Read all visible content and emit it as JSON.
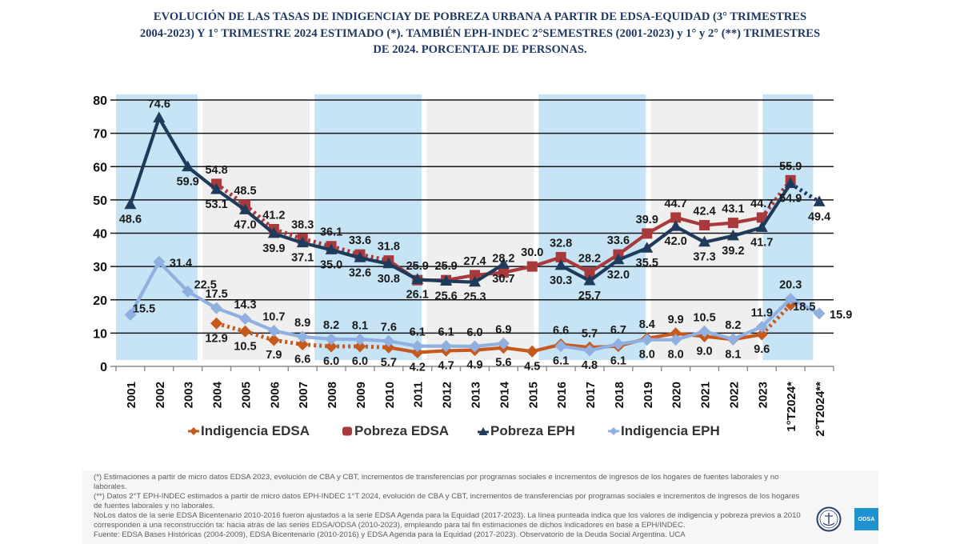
{
  "title_lines": [
    "EVOLUCIÓN DE LAS TASAS DE INDIGENCIAY DE POBREZA URBANA A PARTIR DE EDSA-EQUIDAD (3° TRIMESTRES",
    "2004-2023) Y 1° TRIMESTRE 2024 ESTIMADO (*). TAMBIÉN EPH-INDEC 2°SEMESTRES (2001-2023) y 1° y 2° (**) TRIMESTRES",
    "DE 2024. PORCENTAJE DE PERSONAS."
  ],
  "chart_data": {
    "type": "line",
    "title": "EVOLUCIÓN DE LAS TASAS DE INDIGENCIAY DE POBREZA URBANA A PARTIR DE EDSA-EQUIDAD (3° TRIMESTRES 2004-2023) Y 1° TRIMESTRE 2024 ESTIMADO (*). TAMBIÉN EPH-INDEC 2°SEMESTRES (2001-2023) y 1° y 2° (**) TRIMESTRES DE 2024. PORCENTAJE DE PERSONAS.",
    "xlabel": "",
    "ylabel": "",
    "ylim": [
      0,
      80
    ],
    "yticks": [
      0,
      10,
      20,
      30,
      40,
      50,
      60,
      70,
      80
    ],
    "grid": true,
    "legend_position": "bottom",
    "data_labels": true,
    "categories": [
      "2001",
      "2002",
      "2003",
      "2004",
      "2005",
      "2006",
      "2007",
      "2008",
      "2009",
      "2010",
      "2011",
      "2012",
      "2013",
      "2014",
      "2015",
      "2016",
      "2017",
      "2018",
      "2019",
      "2020",
      "2021",
      "2022",
      "2023",
      "1°T2024*",
      "2°T2024**"
    ],
    "series": [
      {
        "name": "Indigencia EDSA",
        "color": "#c65a1e",
        "marker": "diamond",
        "values": [
          null,
          null,
          null,
          12.9,
          10.5,
          7.9,
          6.6,
          6.0,
          6.0,
          5.7,
          4.2,
          4.7,
          4.9,
          5.6,
          4.5,
          6.6,
          5.7,
          6.1,
          8.4,
          9.9,
          9.0,
          8.1,
          9.6,
          18.5,
          null
        ],
        "dotted_ranges": [
          [
            "2004",
            "2010"
          ],
          [
            "2023",
            "1°T2024*"
          ]
        ]
      },
      {
        "name": "Pobreza EDSA",
        "color": "#a93a3c",
        "marker": "square",
        "values": [
          null,
          null,
          null,
          54.8,
          48.5,
          41.2,
          38.3,
          36.1,
          33.6,
          31.8,
          25.9,
          25.9,
          27.4,
          28.2,
          30.0,
          32.8,
          28.2,
          33.6,
          39.9,
          44.7,
          42.4,
          43.1,
          44.7,
          55.9,
          null
        ],
        "dotted_ranges": [
          [
            "2004",
            "2010"
          ],
          [
            "2023",
            "1°T2024*"
          ]
        ]
      },
      {
        "name": "Pobreza EPH",
        "color": "#1f3b5c",
        "marker": "triangle",
        "values": [
          48.6,
          74.6,
          59.9,
          53.1,
          47.0,
          39.9,
          37.1,
          35.0,
          32.6,
          30.8,
          26.1,
          25.6,
          25.3,
          30.7,
          null,
          30.3,
          25.7,
          32.0,
          35.5,
          42.0,
          37.3,
          39.2,
          41.7,
          54.9,
          49.4
        ],
        "dotted_ranges": [
          [
            "1°T2024*",
            "2°T2024**"
          ]
        ]
      },
      {
        "name": "Indigencia EPH",
        "color": "#8fb0e0",
        "marker": "diamond",
        "values": [
          15.5,
          31.4,
          22.5,
          17.5,
          14.3,
          10.7,
          8.9,
          8.2,
          8.1,
          7.6,
          6.1,
          6.1,
          6.0,
          6.9,
          null,
          6.1,
          4.8,
          6.7,
          8.0,
          8.0,
          10.5,
          8.2,
          11.9,
          20.3,
          15.9
        ],
        "dotted_ranges": []
      }
    ],
    "bands": [
      {
        "from": "2001",
        "to": "2003",
        "shade": "blue",
        "color": "#c6e4f5"
      },
      {
        "from": "2004",
        "to": "2007",
        "shade": "gray",
        "color": "#efefef"
      },
      {
        "from": "2008",
        "to": "2011",
        "shade": "blue",
        "color": "#c6e4f5"
      },
      {
        "from": "2012",
        "to": "2015",
        "shade": "gray",
        "color": "#efefef"
      },
      {
        "from": "2016",
        "to": "2019",
        "shade": "blue",
        "color": "#c6e4f5"
      },
      {
        "from": "2020",
        "to": "2023",
        "shade": "gray",
        "color": "#efefef"
      },
      {
        "from": "1°T2024*",
        "to": "2°T2024**",
        "shade": "blue",
        "color": "#c6e4f5"
      }
    ]
  },
  "footnotes": [
    "(*) Estimaciones a partir de micro datos EDSA 2023, evolución de CBA y CBT, incrementos de transferencias por programas sociales e incrementos de ingresos  de los hogares de fuentes laborales y no laborales.",
    "(**) Datos 2°T EPH-INDEC estimados a partir de micro datos EPH-INDEC 1°T 2024, evolución de CBA y CBT, incrementos de transferencias por programas sociales e incrementos de ingresos  de los hogares de fuentes laborales y no laborales.",
    "NoLos datos de la serie EDSA Bicentenario 2010-2016 fueron ajustados a la serie EDSA Agenda para la Equidad (2017-2023). La línea punteada indica que los valores de indigencia y pobreza previos a 2010 corresponden a una reconstrucción ta: hacia atrás de las series EDSA/ODSA (2010-2023), empleando para tal fin estimaciones de dichos indicadores en base a EPH/INDEC.",
    "Fuente: EDSA Bases Históricas (2004-2009), EDSA Bicentenario (2010-2016) y EDSA Agenda para la Equidad (2017-2023). Observatorio de la Deuda Social Argentina. UCA"
  ],
  "logos": {
    "seal_icon": "uca-seal-icon",
    "odsa_text": "ODSA"
  }
}
